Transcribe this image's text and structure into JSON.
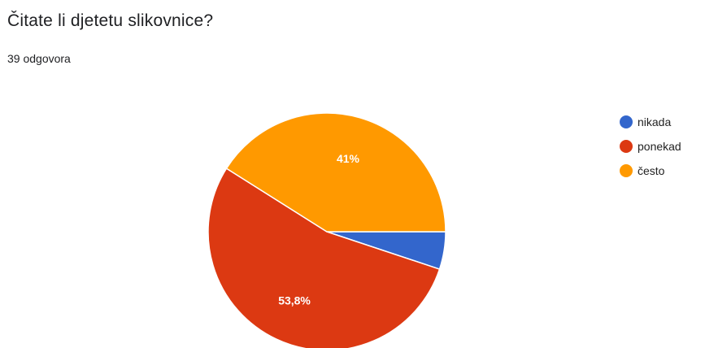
{
  "question": {
    "title": "Čitate li djetetu slikovnice?",
    "responses": "39 odgovora"
  },
  "chart_data": {
    "type": "pie",
    "categories": [
      "nikada",
      "ponekad",
      "često"
    ],
    "values": [
      5.1,
      53.8,
      41
    ],
    "value_labels": [
      "",
      "53,8%",
      "41%"
    ],
    "colors": [
      "#3366cc",
      "#dc3912",
      "#ff9900"
    ],
    "legend_position": "right",
    "start_angle_deg": 0,
    "direction": "clockwise"
  },
  "legend": {
    "items": [
      {
        "label": "nikada",
        "color": "#3366cc"
      },
      {
        "label": "ponekad",
        "color": "#dc3912"
      },
      {
        "label": "često",
        "color": "#ff9900"
      }
    ]
  }
}
